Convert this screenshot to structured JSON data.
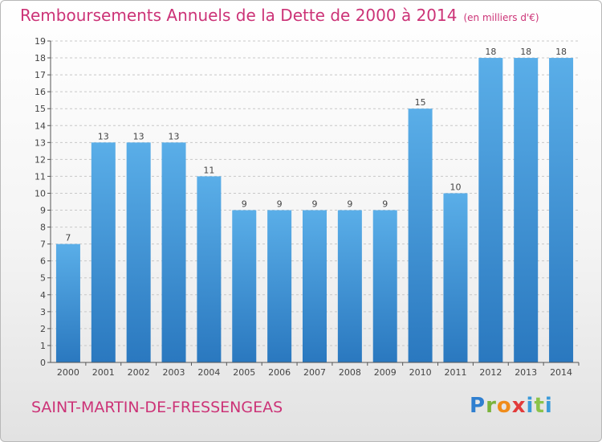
{
  "header": {
    "title": "Remboursements Annuels de la Dette de 2000 à 2014",
    "subtitle": "(en milliers d'€)"
  },
  "footer": {
    "commune": "SAINT-MARTIN-DE-FRESSENGEAS",
    "logo_letters": [
      "P",
      "r",
      "o",
      "x",
      "i",
      "t",
      "i"
    ]
  },
  "colors": {
    "title": "#cc3377",
    "bar_top": "#5aaee8",
    "bar_bottom": "#2a78bf",
    "grid": "#c8c8c8",
    "axis": "#555555",
    "text": "#444444"
  },
  "chart_data": {
    "type": "bar",
    "title": "Remboursements Annuels de la Dette de 2000 à 2014",
    "xlabel": "",
    "ylabel": "",
    "ylim": [
      0,
      19
    ],
    "yticks": [
      "0",
      "1",
      "2",
      "3",
      "4",
      "5",
      "6",
      "7",
      "8",
      "9",
      "10",
      "11",
      "12",
      "13",
      "14",
      "15",
      "16",
      "17",
      "18",
      "19"
    ],
    "categories": [
      "2000",
      "2001",
      "2002",
      "2003",
      "2004",
      "2005",
      "2006",
      "2007",
      "2008",
      "2009",
      "2010",
      "2011",
      "2012",
      "2013",
      "2014"
    ],
    "values": [
      7,
      13,
      13,
      13,
      11,
      9,
      9,
      9,
      9,
      9,
      15,
      10,
      18,
      18,
      18
    ],
    "labels": [
      "7",
      "13",
      "13",
      "13",
      "11",
      "9",
      "9",
      "9",
      "9",
      "9",
      "15",
      "10",
      "18",
      "18",
      "18"
    ],
    "grid": true,
    "legend": "none"
  }
}
